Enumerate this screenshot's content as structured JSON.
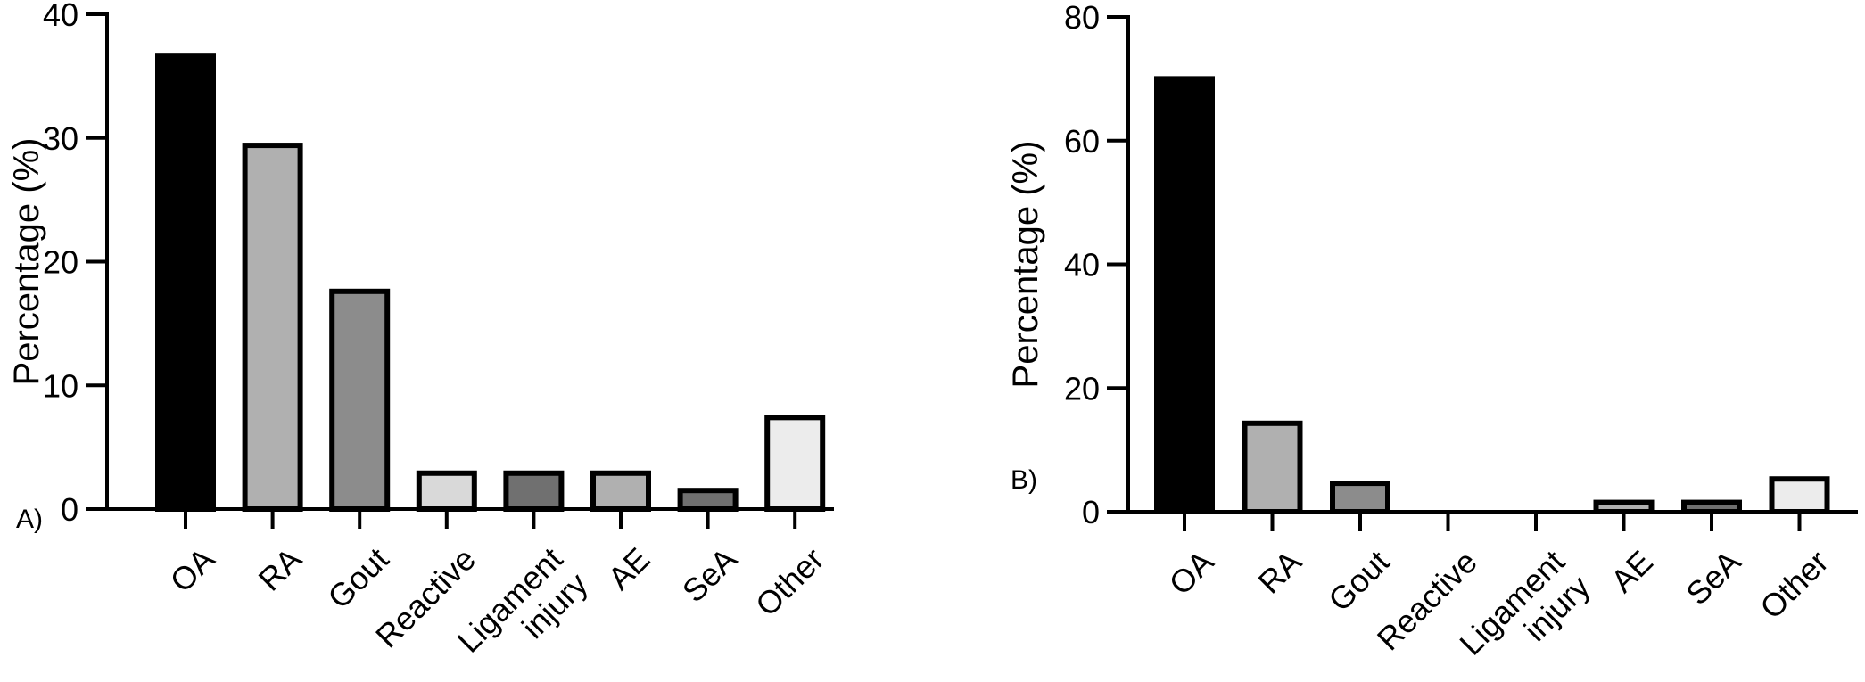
{
  "chart_data": [
    {
      "type": "bar",
      "panel_label": "A)",
      "ylabel": "Percentage (%)",
      "ylim": [
        0,
        40
      ],
      "yticks": [
        0,
        10,
        20,
        30,
        40
      ],
      "categories": [
        "OA",
        "RA",
        "Gout",
        "Reactive",
        "Ligament injury",
        "AE",
        "SeA",
        "Other"
      ],
      "values": [
        36.6,
        29.4,
        17.6,
        2.9,
        2.9,
        2.9,
        1.5,
        7.4
      ],
      "bar_colors": [
        "#000000",
        "#b0b0b0",
        "#8c8c8c",
        "#d9d9d9",
        "#707070",
        "#b0b0b0",
        "#707070",
        "#ececec"
      ]
    },
    {
      "type": "bar",
      "panel_label": "B)",
      "ylabel": "Percentage (%)",
      "ylim": [
        0,
        80
      ],
      "yticks": [
        0,
        20,
        40,
        60,
        80
      ],
      "categories": [
        "OA",
        "RA",
        "Gout",
        "Reactive",
        "Ligament injury",
        "AE",
        "SeA",
        "Other"
      ],
      "values": [
        70.0,
        14.3,
        4.6,
        0,
        0,
        1.5,
        1.5,
        5.3
      ],
      "bar_colors": [
        "#000000",
        "#b0b0b0",
        "#8c8c8c",
        "#d9d9d9",
        "#707070",
        "#b0b0b0",
        "#707070",
        "#ececec"
      ]
    }
  ]
}
